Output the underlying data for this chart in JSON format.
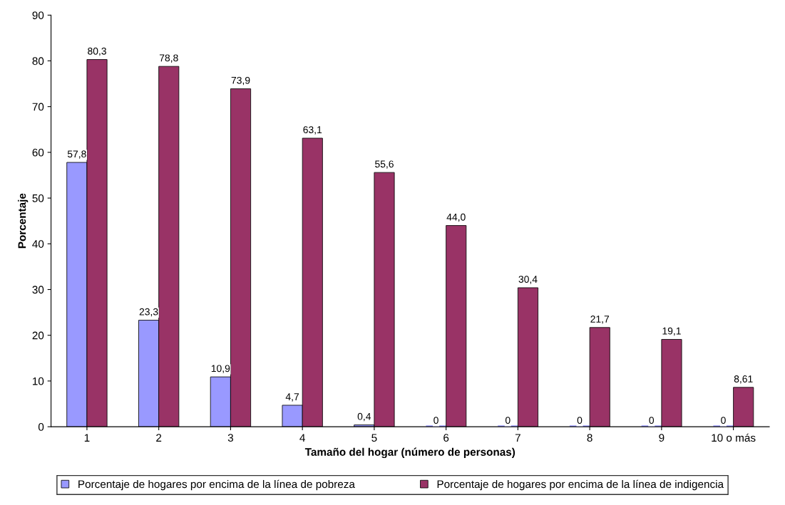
{
  "chart_data": {
    "type": "bar",
    "xlabel": "Tamaño del hogar (número de personas)",
    "ylabel": "Porcentaje",
    "categories": [
      "1",
      "2",
      "3",
      "4",
      "5",
      "6",
      "7",
      "8",
      "9",
      "10 o más"
    ],
    "series": [
      {
        "name": "Porcentaje de hogares por encima de la línea de pobreza",
        "color": "#9999ff",
        "values": [
          57.8,
          23.3,
          10.9,
          4.7,
          0.4,
          0,
          0,
          0,
          0,
          0
        ],
        "value_labels": [
          "57,8",
          "23,3",
          "10,9",
          "4,7",
          "0,4",
          "0",
          "0",
          "0",
          "0",
          "0"
        ]
      },
      {
        "name": "Porcentaje de hogares por encima de la línea de indigencia",
        "color": "#993366",
        "values": [
          80.3,
          78.8,
          73.9,
          63.1,
          55.6,
          44.0,
          30.4,
          21.7,
          19.1,
          8.61
        ],
        "value_labels": [
          "80,3",
          "78,8",
          "73,9",
          "63,1",
          "55,6",
          "44,0",
          "30,4",
          "21,7",
          "19,1",
          "8,61"
        ]
      }
    ],
    "ylim": [
      0,
      90
    ],
    "yticks": [
      0,
      10,
      20,
      30,
      40,
      50,
      60,
      70,
      80,
      90
    ],
    "grid": false,
    "legend": "bottom"
  }
}
